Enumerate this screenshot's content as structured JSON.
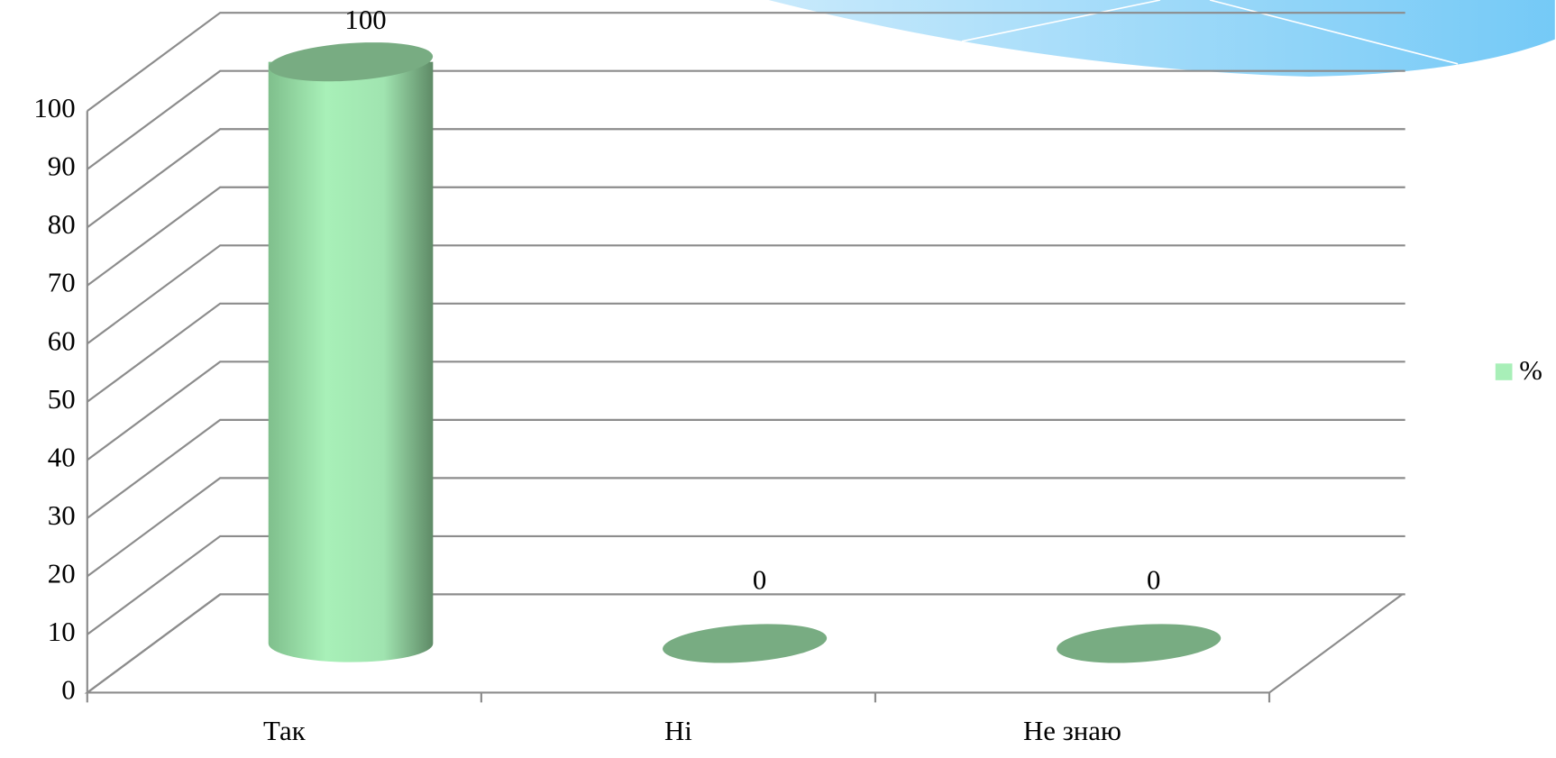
{
  "chart_data": {
    "type": "bar3d",
    "categories": [
      "Так",
      "Ні",
      "Не знаю"
    ],
    "series": [
      {
        "name": "%",
        "color": "#a8efb8",
        "values": [
          100,
          0,
          0
        ]
      }
    ],
    "ylim": [
      0,
      100
    ],
    "yticks": [
      0,
      10,
      20,
      30,
      40,
      50,
      60,
      70,
      80,
      90,
      100
    ],
    "grid": true,
    "legend": "right"
  }
}
